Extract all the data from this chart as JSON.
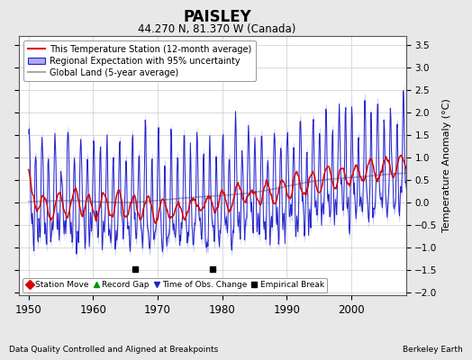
{
  "title": "PAISLEY",
  "subtitle": "44.270 N, 81.370 W (Canada)",
  "xlabel_bottom": "Data Quality Controlled and Aligned at Breakpoints",
  "xlabel_right": "Berkeley Earth",
  "ylabel": "Temperature Anomaly (°C)",
  "xlim": [
    1948.5,
    2008.5
  ],
  "ylim": [
    -2.05,
    3.7
  ],
  "yticks": [
    -2,
    -1.5,
    -1,
    -0.5,
    0,
    0.5,
    1,
    1.5,
    2,
    2.5,
    3,
    3.5
  ],
  "xticks": [
    1950,
    1960,
    1970,
    1980,
    1990,
    2000
  ],
  "grid_color": "#cccccc",
  "bg_color": "#e8e8e8",
  "plot_bg": "#ffffff",
  "station_color": "#dd0000",
  "regional_color": "#2222cc",
  "regional_fill": "#aaaaee",
  "global_color": "#aaaaaa",
  "empirical_breaks": [
    1966.5,
    1978.5
  ],
  "empirical_break_y": -1.47,
  "seed": 12345
}
